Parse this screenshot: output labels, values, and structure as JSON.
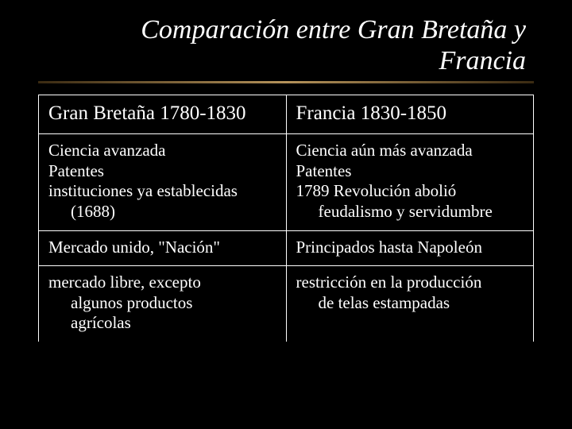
{
  "title": "Comparación entre Gran Bretaña y Francia",
  "table": {
    "headers": [
      "Gran Bretaña 1780-1830",
      "Francia 1830-1850"
    ],
    "rows": [
      {
        "gb": {
          "l1": "Ciencia avanzada",
          "l2": "Patentes",
          "l3": "instituciones ya establecidas",
          "l3b": "(1688)"
        },
        "fr": {
          "l1": "Ciencia aún más avanzada",
          "l2": "Patentes",
          "l3": "1789 Revolución abolió",
          "l3b": "feudalismo y servidumbre"
        }
      },
      {
        "gb": {
          "l1": "Mercado unido, \"Nación\""
        },
        "fr": {
          "l1": "Principados hasta Napoleón"
        }
      },
      {
        "gb": {
          "l1": "mercado libre, excepto",
          "l1b": "algunos productos",
          "l1c": "agrícolas"
        },
        "fr": {
          "l1": "restricción en la producción",
          "l1b": "de telas estampadas"
        }
      }
    ]
  },
  "colors": {
    "background": "#000000",
    "text": "#ffffff",
    "border": "#ffffff"
  },
  "typography": {
    "title_fontsize": 34,
    "header_fontsize": 25,
    "cell_fontsize": 21,
    "font_family": "Times New Roman",
    "title_style": "italic"
  }
}
